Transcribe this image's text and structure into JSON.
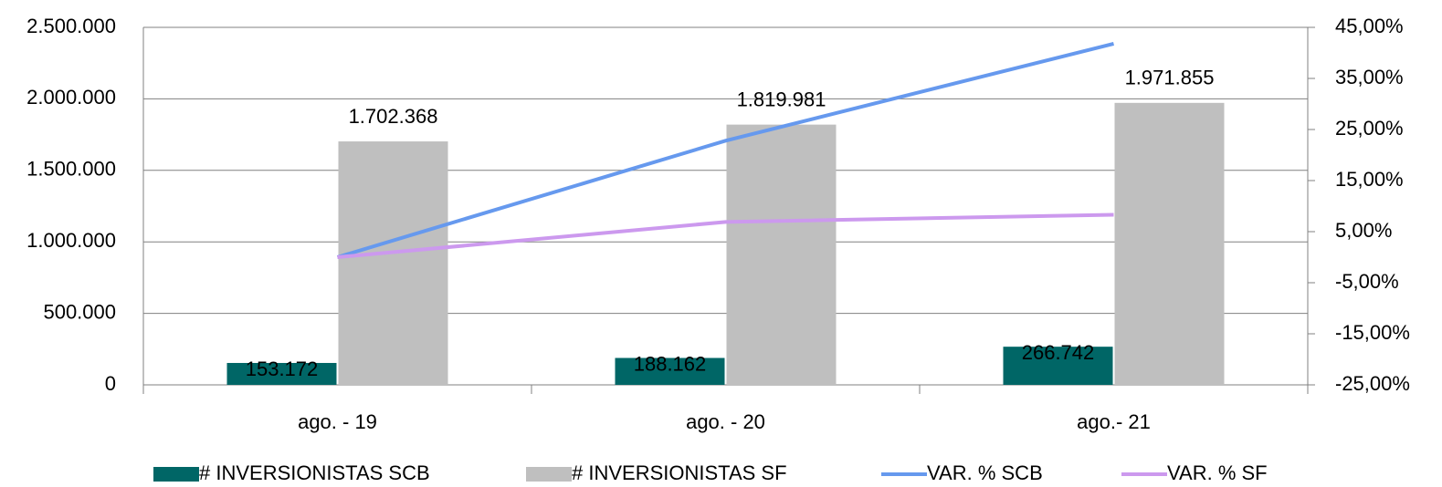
{
  "chart_data": {
    "type": "bar_line",
    "categories": [
      "ago. - 19",
      "ago. - 20",
      "ago.- 21"
    ],
    "series": [
      {
        "name": "# INVERSIONISTAS SCB",
        "color": "#006666",
        "type": "bar",
        "values": [
          153172,
          188162,
          266742
        ],
        "value_labels": [
          "153.172",
          "188.162",
          "266.742"
        ]
      },
      {
        "name": "# INVERSIONISTAS SF",
        "color": "#bfbfbf",
        "type": "bar",
        "values": [
          1702368,
          1819981,
          1971855
        ],
        "value_labels": [
          "1.702.368",
          "1.819.981",
          "1.971.855"
        ]
      },
      {
        "name": "VAR. % SCB",
        "color": "#6699ee",
        "type": "line",
        "axis": "y2",
        "values": [
          0,
          22.8,
          41.8
        ]
      },
      {
        "name": "VAR. % SF",
        "color": "#cc99ee",
        "type": "line",
        "axis": "y2",
        "values": [
          0,
          6.9,
          8.3
        ]
      }
    ],
    "ylim": [
      0,
      2500000
    ],
    "yticks": [
      0,
      {
        "value": 500000,
        "label": "500.000"
      },
      {
        "value": 1000000,
        "label": "1.000.000"
      },
      {
        "value": 1500000,
        "label": "1.500.000"
      },
      {
        "value": 2000000,
        "label": "2.000.000"
      },
      {
        "value": 2500000,
        "label": "2.500.000"
      }
    ],
    "y2lim": [
      -25,
      45
    ],
    "y2ticks": [
      {
        "value": -25,
        "label": "-25,00%"
      },
      {
        "value": -15,
        "label": "-15,00%"
      },
      {
        "value": -5,
        "label": "-5,00%"
      },
      {
        "value": 5,
        "label": "5,00%"
      },
      {
        "value": 15,
        "label": "15,00%"
      },
      {
        "value": 25,
        "label": "25,00%"
      },
      {
        "value": 35,
        "label": "35,00%"
      },
      {
        "value": 45,
        "label": "45,00%"
      }
    ],
    "grid": true,
    "legend": "bottom"
  }
}
